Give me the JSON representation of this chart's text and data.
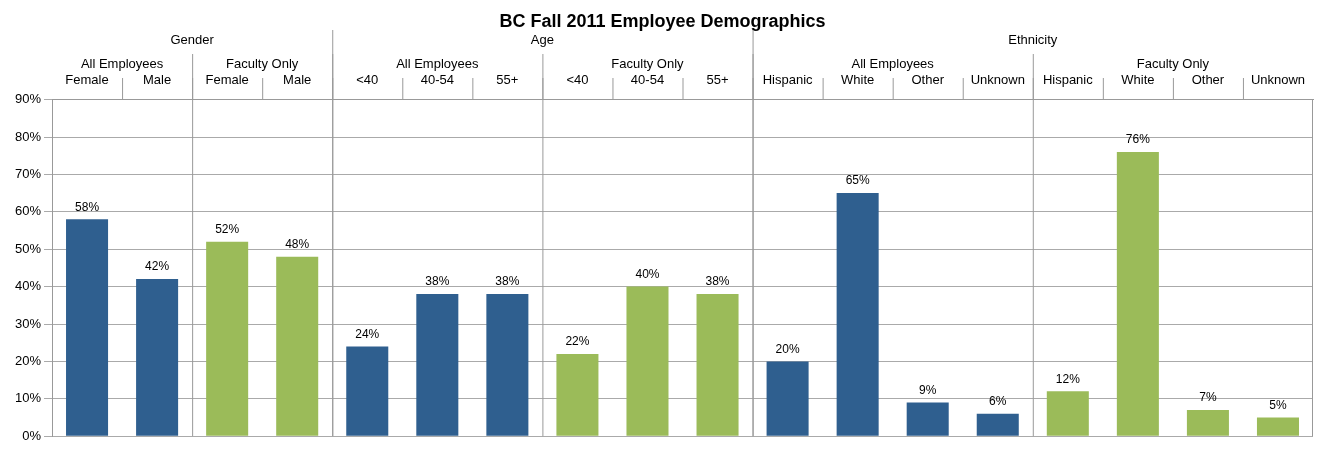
{
  "chart_data": {
    "type": "bar",
    "title": "BC Fall 2011 Employee Demographics",
    "categories": [
      "Female",
      "Male",
      "Female",
      "Male",
      "<40",
      "40-54",
      "55+",
      "<40",
      "40-54",
      "55+",
      "Hispanic",
      "White",
      "Other",
      "Unknown",
      "Hispanic",
      "White",
      "Other",
      "Unknown"
    ],
    "series": [
      {
        "color": "#2f5f8f",
        "values": [
          58,
          42,
          null,
          null,
          24,
          38,
          38,
          null,
          null,
          null,
          20,
          65,
          9,
          6,
          null,
          null,
          null,
          null
        ],
        "value_labels": [
          "58%",
          "42%",
          null,
          null,
          "24%",
          "38%",
          "38%",
          null,
          null,
          null,
          "20%",
          "65%",
          "9%",
          "6%",
          null,
          null,
          null,
          null
        ]
      },
      {
        "color": "#9bbb59",
        "values": [
          null,
          null,
          52,
          48,
          null,
          null,
          null,
          22,
          40,
          38,
          null,
          null,
          null,
          null,
          12,
          76,
          7,
          5
        ],
        "value_labels": [
          null,
          null,
          "52%",
          "48%",
          null,
          null,
          null,
          "22%",
          "40%",
          "38%",
          null,
          null,
          null,
          null,
          "12%",
          "76%",
          "7%",
          "5%"
        ]
      }
    ],
    "annotations": [
      "Gender",
      "Age",
      "Ethnicity",
      "All Employees",
      "Faculty Only",
      "All Employees",
      "Faculty Only",
      "All Employees",
      "Faculty Only"
    ],
    "ylim": [
      0,
      90
    ],
    "yticks": [
      {
        "value": 0,
        "label": "0%"
      },
      {
        "value": 10,
        "label": "10%"
      },
      {
        "value": 20,
        "label": "20%"
      },
      {
        "value": 30,
        "label": "30%"
      },
      {
        "value": 40,
        "label": "40%"
      },
      {
        "value": 50,
        "label": "50%"
      },
      {
        "value": 60,
        "label": "60%"
      },
      {
        "value": 70,
        "label": "70%"
      },
      {
        "value": 80,
        "label": "80%"
      },
      {
        "value": 90,
        "label": "90%"
      }
    ],
    "grid": "y",
    "legend": false
  }
}
